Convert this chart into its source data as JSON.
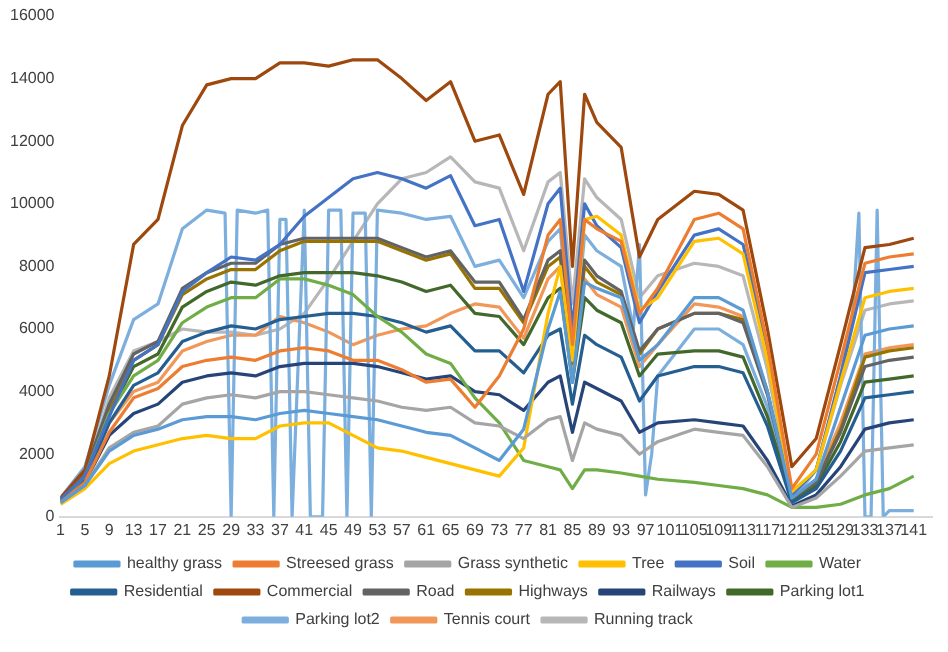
{
  "chart_data": {
    "type": "line",
    "x": [
      1,
      5,
      9,
      13,
      17,
      21,
      25,
      29,
      33,
      37,
      41,
      45,
      49,
      53,
      57,
      61,
      65,
      69,
      73,
      77,
      81,
      83,
      85,
      87,
      89,
      93,
      96,
      99,
      105,
      109,
      113,
      117,
      121,
      125,
      129,
      133,
      137,
      141
    ],
    "xlim": [
      1,
      144
    ],
    "xticks": [
      1,
      5,
      9,
      13,
      17,
      21,
      25,
      29,
      33,
      37,
      41,
      45,
      49,
      53,
      57,
      61,
      65,
      69,
      73,
      77,
      81,
      85,
      89,
      93,
      97,
      101,
      105,
      109,
      113,
      117,
      121,
      125,
      129,
      133,
      137,
      141
    ],
    "ylim": [
      0,
      16000
    ],
    "yticks": [
      0,
      2000,
      4000,
      6000,
      8000,
      10000,
      12000,
      14000,
      16000
    ],
    "grid": false,
    "legend": "bottom",
    "marker": "none",
    "line_style": "solid",
    "series": [
      {
        "name": "healthy grass",
        "color": "#5b9bd5",
        "values": [
          450,
          1000,
          2100,
          2600,
          2800,
          3100,
          3200,
          3200,
          3100,
          3300,
          3400,
          3300,
          3200,
          3100,
          2900,
          2700,
          2600,
          2200,
          1800,
          2800,
          6000,
          7200,
          4300,
          7500,
          7300,
          7000,
          5000,
          5500,
          7000,
          7000,
          6600,
          4000,
          600,
          1200,
          3500,
          5800,
          6000,
          6100
        ]
      },
      {
        "name": "Streesed grass",
        "color": "#ed7d31",
        "values": [
          450,
          1100,
          2700,
          3800,
          4100,
          4800,
          5000,
          5100,
          5000,
          5300,
          5400,
          5300,
          5000,
          5000,
          4700,
          4300,
          4400,
          3500,
          4500,
          6000,
          9000,
          9500,
          5500,
          9500,
          9200,
          8800,
          6500,
          7300,
          9500,
          9700,
          9200,
          5500,
          900,
          2000,
          5000,
          8100,
          8300,
          8400
        ]
      },
      {
        "name": "Grass synthetic",
        "color": "#a5a5a5",
        "values": [
          450,
          1000,
          2200,
          2700,
          2900,
          3600,
          3800,
          3900,
          3800,
          4000,
          4000,
          3900,
          3800,
          3700,
          3500,
          3400,
          3500,
          3000,
          2900,
          2500,
          3100,
          3200,
          1800,
          3000,
          2800,
          2600,
          2000,
          2400,
          2800,
          2700,
          2600,
          1600,
          300,
          600,
          1300,
          2100,
          2200,
          2300
        ]
      },
      {
        "name": "Tree",
        "color": "#ffc000",
        "values": [
          400,
          900,
          1700,
          2100,
          2300,
          2500,
          2600,
          2500,
          2500,
          2900,
          3000,
          3000,
          2600,
          2200,
          2100,
          1900,
          1700,
          1500,
          1300,
          2200,
          6500,
          8000,
          5000,
          9500,
          9600,
          9000,
          6600,
          7000,
          8800,
          8900,
          8400,
          5000,
          800,
          1500,
          4300,
          7000,
          7200,
          7300
        ]
      },
      {
        "name": "Soil",
        "color": "#4472c4",
        "values": [
          550,
          1300,
          3200,
          5000,
          5500,
          7200,
          7800,
          8300,
          8200,
          8700,
          9600,
          10200,
          10800,
          11000,
          10800,
          10500,
          10900,
          9300,
          9500,
          7200,
          10000,
          10500,
          6000,
          10000,
          9300,
          8600,
          6200,
          7200,
          9000,
          9200,
          8700,
          5400,
          700,
          1500,
          4500,
          7800,
          7900,
          8000
        ]
      },
      {
        "name": "Water",
        "color": "#70ad47",
        "values": [
          500,
          1300,
          3300,
          4500,
          5000,
          6200,
          6700,
          7000,
          7000,
          7600,
          7600,
          7400,
          7100,
          6400,
          5900,
          5200,
          4900,
          3800,
          3000,
          1800,
          1600,
          1500,
          900,
          1500,
          1500,
          1400,
          1300,
          1200,
          1100,
          1000,
          900,
          700,
          300,
          300,
          400,
          700,
          900,
          1300
        ]
      },
      {
        "name": "Residential",
        "color": "#255e91",
        "values": [
          500,
          1200,
          3000,
          4200,
          4600,
          5600,
          5900,
          6100,
          6000,
          6300,
          6400,
          6500,
          6500,
          6400,
          6200,
          5900,
          6100,
          5300,
          5300,
          4600,
          5800,
          6000,
          3600,
          5800,
          5500,
          5100,
          3700,
          4500,
          4800,
          4800,
          4600,
          2900,
          450,
          900,
          2100,
          3800,
          3900,
          4000
        ]
      },
      {
        "name": "Commercial",
        "color": "#9e480e",
        "values": [
          600,
          1500,
          4500,
          8700,
          9500,
          12500,
          13800,
          14000,
          14000,
          14500,
          14500,
          14400,
          14600,
          14600,
          14000,
          13300,
          13900,
          12000,
          12200,
          10300,
          13500,
          13900,
          8000,
          13500,
          12600,
          11800,
          8300,
          9500,
          10400,
          10300,
          9800,
          6000,
          1600,
          2500,
          5500,
          8600,
          8700,
          8900
        ]
      },
      {
        "name": "Road",
        "color": "#636363",
        "values": [
          600,
          1400,
          3600,
          5200,
          5600,
          7300,
          7800,
          8100,
          8100,
          8700,
          8900,
          8900,
          8900,
          8900,
          8600,
          8300,
          8500,
          7500,
          7500,
          6300,
          8200,
          8500,
          5000,
          8200,
          7700,
          7200,
          5300,
          6000,
          6500,
          6500,
          6200,
          3900,
          600,
          1100,
          2700,
          4800,
          5000,
          5100
        ]
      },
      {
        "name": "Highways",
        "color": "#997300",
        "values": [
          580,
          1400,
          3400,
          5000,
          5500,
          7100,
          7600,
          7900,
          7900,
          8500,
          8800,
          8800,
          8800,
          8800,
          8500,
          8200,
          8400,
          7300,
          7300,
          6200,
          8000,
          8300,
          4900,
          8000,
          7500,
          7100,
          5200,
          6000,
          6500,
          6500,
          6300,
          4000,
          600,
          1100,
          2800,
          5100,
          5300,
          5400
        ]
      },
      {
        "name": "Railways",
        "color": "#264478",
        "values": [
          450,
          1100,
          2600,
          3300,
          3600,
          4300,
          4500,
          4600,
          4500,
          4800,
          4900,
          4900,
          4900,
          4800,
          4600,
          4400,
          4500,
          4000,
          3900,
          3400,
          4300,
          4500,
          2700,
          4300,
          4100,
          3700,
          2700,
          3000,
          3100,
          3000,
          2900,
          1800,
          350,
          700,
          1600,
          2800,
          3000,
          3100
        ]
      },
      {
        "name": "Parking lot1",
        "color": "#43682b",
        "values": [
          550,
          1300,
          3300,
          4800,
          5200,
          6700,
          7200,
          7500,
          7400,
          7700,
          7800,
          7800,
          7800,
          7700,
          7500,
          7200,
          7400,
          6500,
          6400,
          5500,
          7000,
          7300,
          4300,
          7000,
          6600,
          6200,
          4500,
          5200,
          5300,
          5300,
          5100,
          3200,
          500,
          1000,
          2400,
          4300,
          4400,
          4500
        ]
      },
      {
        "name": "Parking lot2",
        "color": "#7cafdd",
        "x": [
          1,
          5,
          9,
          13,
          17,
          21,
          25,
          28,
          29,
          30,
          33,
          35,
          36,
          37,
          38,
          39,
          41,
          42,
          44,
          45,
          47,
          48,
          49,
          51,
          52,
          53,
          57,
          61,
          65,
          69,
          73,
          77,
          81,
          83,
          85,
          87,
          89,
          93,
          95,
          96,
          97,
          98,
          99,
          105,
          109,
          113,
          117,
          121,
          125,
          129,
          131,
          132,
          133,
          134,
          135,
          136,
          137,
          141
        ],
        "values": [
          600,
          1600,
          4200,
          6300,
          6800,
          9200,
          9800,
          9700,
          0,
          9800,
          9700,
          9800,
          0,
          9500,
          9500,
          0,
          9800,
          0,
          0,
          9800,
          9800,
          0,
          9700,
          9700,
          0,
          9800,
          9700,
          9500,
          9600,
          8000,
          8200,
          7000,
          8800,
          9200,
          5000,
          9000,
          8500,
          8000,
          6000,
          8700,
          700,
          2000,
          4500,
          6000,
          6000,
          5500,
          3500,
          500,
          1500,
          4500,
          6500,
          9700,
          0,
          0,
          9800,
          0,
          200,
          200
        ]
      },
      {
        "name": "Tennis court",
        "color": "#f1975a",
        "values": [
          500,
          1200,
          3000,
          4000,
          4300,
          5300,
          5600,
          5800,
          5800,
          6400,
          6200,
          5900,
          5500,
          5800,
          6000,
          6100,
          6500,
          6800,
          6700,
          5700,
          7600,
          8000,
          4700,
          7600,
          7100,
          6700,
          4800,
          5500,
          6800,
          6700,
          6400,
          4000,
          600,
          1200,
          3000,
          5200,
          5400,
          5500
        ]
      },
      {
        "name": "Running track",
        "color": "#b7b7b7",
        "values": [
          550,
          1300,
          3800,
          5300,
          5600,
          6000,
          5900,
          5900,
          5800,
          6000,
          6500,
          7600,
          8800,
          10000,
          10800,
          11000,
          11500,
          10700,
          10500,
          8500,
          10700,
          11000,
          6800,
          10800,
          10200,
          9500,
          7000,
          7700,
          8100,
          8000,
          7700,
          4700,
          700,
          1500,
          4200,
          6600,
          6800,
          6900
        ]
      }
    ]
  }
}
